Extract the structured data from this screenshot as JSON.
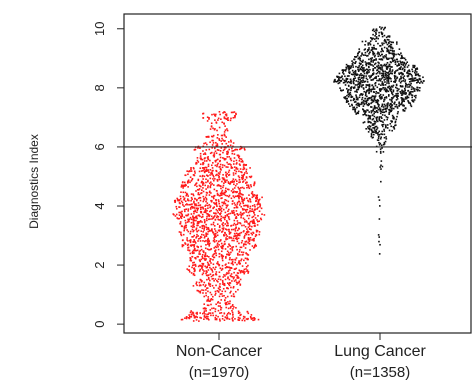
{
  "chart_data": {
    "type": "scatter",
    "subtype": "beeswarm",
    "title": "",
    "ylabel": "Diagnostics Index",
    "xlabel": "",
    "ylim": [
      -0.3,
      10.5
    ],
    "yticks": [
      "0",
      "2",
      "4",
      "6",
      "8",
      "10"
    ],
    "reference_line": {
      "y": 6,
      "color": "#222222"
    },
    "grid": false,
    "groups": [
      {
        "category": "Non-Cancer",
        "n_label": "(n=1970)",
        "n": 1970,
        "color": "#ff1a1a",
        "min": 0.1,
        "max": 7.2,
        "median": 3.5,
        "q1": 2.2,
        "q3": 4.6
      },
      {
        "category": "Lung Cancer",
        "n_label": "(n=1358)",
        "n": 1358,
        "color": "#111111",
        "min": 2.3,
        "max": 10.1,
        "median": 8.2,
        "q1": 7.6,
        "q3": 8.7
      }
    ]
  }
}
